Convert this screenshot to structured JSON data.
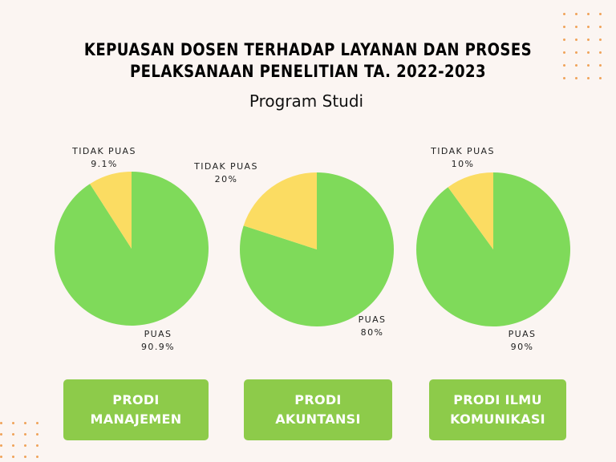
{
  "title_line1": "KEPUASAN DOSEN TERHADAP LAYANAN DAN PROSES",
  "title_line2": "PELAKSANAAN PENELITIAN TA. 2022-2023",
  "subtitle": "Program Studi",
  "colors": {
    "puas": "#7fda5a",
    "tidak_puas": "#fbdc62",
    "button": "#8dcb4a",
    "dots": "#f0a35a",
    "background": "#fbf5f2"
  },
  "chart_data": [
    {
      "type": "pie",
      "categories": [
        "PUAS",
        "TIDAK PUAS"
      ],
      "values": [
        90.9,
        9.1
      ],
      "value_labels": [
        "90.9%",
        "9.1%"
      ],
      "program": "PRODI MANAJEMEN"
    },
    {
      "type": "pie",
      "categories": [
        "PUAS",
        "TIDAK PUAS"
      ],
      "values": [
        80,
        20
      ],
      "value_labels": [
        "80%",
        "20%"
      ],
      "program": "PRODI AKUNTANSI"
    },
    {
      "type": "pie",
      "categories": [
        "PUAS",
        "TIDAK PUAS"
      ],
      "values": [
        90,
        10
      ],
      "value_labels": [
        "90%",
        "10%"
      ],
      "program": "PRODI ILMU KOMUNIKASI"
    }
  ],
  "buttons": [
    {
      "line1": "PRODI",
      "line2": "MANAJEMEN"
    },
    {
      "line1": "PRODI",
      "line2": "AKUNTANSI"
    },
    {
      "line1": "PRODI ILMU",
      "line2": "KOMUNIKASI"
    }
  ]
}
